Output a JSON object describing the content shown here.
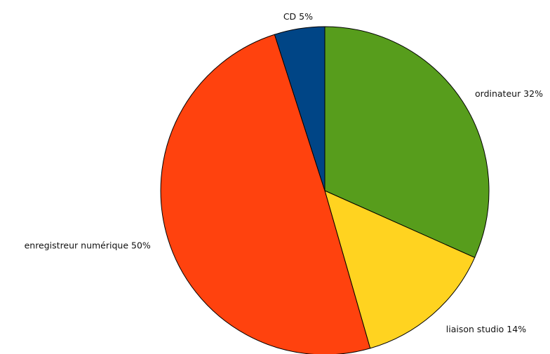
{
  "chart_data": {
    "type": "pie",
    "title": "",
    "legend": "none",
    "slices": [
      {
        "label": "ordinateur",
        "value": 32,
        "value_label": "32%",
        "color": "#579d1c"
      },
      {
        "label": "liaison studio",
        "value": 14,
        "value_label": "14%",
        "color": "#ffd320"
      },
      {
        "label": "enregistreur numérique",
        "value": 50,
        "value_label": "50%",
        "color": "#ff420e"
      },
      {
        "label": "CD",
        "value": 5,
        "value_label": "5%",
        "color": "#004586"
      }
    ]
  }
}
